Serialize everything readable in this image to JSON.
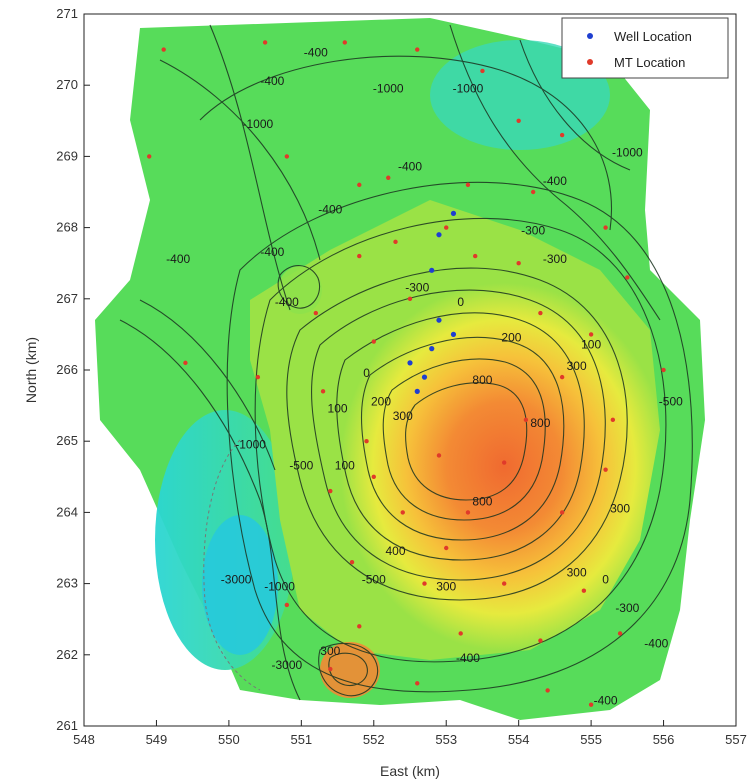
{
  "chart_data": {
    "type": "contour",
    "title": "",
    "xlabel": "East (km)",
    "ylabel": "North (km)",
    "xlim": [
      548,
      557
    ],
    "ylim": [
      261,
      271
    ],
    "x_ticks": [
      "548",
      "549",
      "550",
      "551",
      "552",
      "553",
      "554",
      "555",
      "556",
      "557"
    ],
    "y_ticks": [
      "261",
      "262",
      "263",
      "264",
      "265",
      "266",
      "267",
      "268",
      "269",
      "270",
      "271"
    ],
    "legend": {
      "position": "top-right",
      "entries": [
        {
          "label": "Well Location",
          "color": "#1f3fd0"
        },
        {
          "label": "MT Location",
          "color": "#e03a2a"
        }
      ]
    },
    "contour_labels": [
      {
        "text": "-400",
        "x": 549.3,
        "y": 267.5
      },
      {
        "text": "-400",
        "x": 550.6,
        "y": 270.0
      },
      {
        "text": "-1000",
        "x": 550.4,
        "y": 269.4
      },
      {
        "text": "-400",
        "x": 551.2,
        "y": 270.4
      },
      {
        "text": "-1000",
        "x": 552.2,
        "y": 269.9
      },
      {
        "text": "-1000",
        "x": 553.3,
        "y": 269.9
      },
      {
        "text": "-1000",
        "x": 555.5,
        "y": 269.0
      },
      {
        "text": "-400",
        "x": 552.5,
        "y": 268.8
      },
      {
        "text": "-400",
        "x": 554.5,
        "y": 268.6
      },
      {
        "text": "-400",
        "x": 551.4,
        "y": 268.2
      },
      {
        "text": "-400",
        "x": 550.6,
        "y": 267.6
      },
      {
        "text": "-400",
        "x": 550.8,
        "y": 266.9
      },
      {
        "text": "-300",
        "x": 552.6,
        "y": 267.1
      },
      {
        "text": "-300",
        "x": 554.2,
        "y": 267.9
      },
      {
        "text": "-300",
        "x": 554.5,
        "y": 267.5
      },
      {
        "text": "0",
        "x": 553.2,
        "y": 266.9
      },
      {
        "text": "200",
        "x": 553.9,
        "y": 266.4
      },
      {
        "text": "100",
        "x": 555.0,
        "y": 266.3
      },
      {
        "text": "300",
        "x": 554.8,
        "y": 266.0
      },
      {
        "text": "800",
        "x": 553.5,
        "y": 265.8
      },
      {
        "text": "0",
        "x": 551.9,
        "y": 265.9
      },
      {
        "text": "100",
        "x": 551.5,
        "y": 265.4
      },
      {
        "text": "200",
        "x": 552.1,
        "y": 265.5
      },
      {
        "text": "300",
        "x": 552.4,
        "y": 265.3
      },
      {
        "text": "800",
        "x": 554.3,
        "y": 265.2
      },
      {
        "text": "-500",
        "x": 556.1,
        "y": 265.5
      },
      {
        "text": "-1000",
        "x": 550.3,
        "y": 264.9
      },
      {
        "text": "-500",
        "x": 551.0,
        "y": 264.6
      },
      {
        "text": "100",
        "x": 551.6,
        "y": 264.6
      },
      {
        "text": "800",
        "x": 553.5,
        "y": 264.1
      },
      {
        "text": "300",
        "x": 555.4,
        "y": 264.0
      },
      {
        "text": "400",
        "x": 552.3,
        "y": 263.4
      },
      {
        "text": "-3000",
        "x": 550.1,
        "y": 263.0
      },
      {
        "text": "-1000",
        "x": 550.7,
        "y": 262.9
      },
      {
        "text": "-500",
        "x": 552.0,
        "y": 263.0
      },
      {
        "text": "300",
        "x": 553.0,
        "y": 262.9
      },
      {
        "text": "300",
        "x": 554.8,
        "y": 263.1
      },
      {
        "text": "0",
        "x": 555.2,
        "y": 263.0
      },
      {
        "text": "-300",
        "x": 555.5,
        "y": 262.6
      },
      {
        "text": "-400",
        "x": 555.9,
        "y": 262.1
      },
      {
        "text": "-400",
        "x": 553.3,
        "y": 261.9
      },
      {
        "text": "-400",
        "x": 555.2,
        "y": 261.3
      },
      {
        "text": "300",
        "x": 551.4,
        "y": 262.0
      },
      {
        "text": "-3000",
        "x": 550.8,
        "y": 261.8
      }
    ],
    "well_locations": [
      {
        "x": 553.1,
        "y": 268.2
      },
      {
        "x": 552.9,
        "y": 267.9
      },
      {
        "x": 552.8,
        "y": 267.4
      },
      {
        "x": 552.9,
        "y": 266.7
      },
      {
        "x": 553.1,
        "y": 266.5
      },
      {
        "x": 552.8,
        "y": 266.3
      },
      {
        "x": 552.5,
        "y": 266.1
      },
      {
        "x": 552.7,
        "y": 265.9
      },
      {
        "x": 552.6,
        "y": 265.7
      }
    ],
    "mt_locations": [
      {
        "x": 549.1,
        "y": 270.5
      },
      {
        "x": 550.5,
        "y": 270.6
      },
      {
        "x": 551.6,
        "y": 270.6
      },
      {
        "x": 552.6,
        "y": 270.5
      },
      {
        "x": 553.5,
        "y": 270.2
      },
      {
        "x": 554.0,
        "y": 269.5
      },
      {
        "x": 554.6,
        "y": 269.3
      },
      {
        "x": 548.9,
        "y": 269.0
      },
      {
        "x": 550.8,
        "y": 269.0
      },
      {
        "x": 551.8,
        "y": 268.6
      },
      {
        "x": 552.2,
        "y": 268.7
      },
      {
        "x": 553.3,
        "y": 268.6
      },
      {
        "x": 554.2,
        "y": 268.5
      },
      {
        "x": 555.2,
        "y": 268.0
      },
      {
        "x": 553.0,
        "y": 268.0
      },
      {
        "x": 552.3,
        "y": 267.8
      },
      {
        "x": 551.8,
        "y": 267.6
      },
      {
        "x": 553.4,
        "y": 267.6
      },
      {
        "x": 554.0,
        "y": 267.5
      },
      {
        "x": 555.5,
        "y": 267.3
      },
      {
        "x": 552.5,
        "y": 267.0
      },
      {
        "x": 551.2,
        "y": 266.8
      },
      {
        "x": 552.0,
        "y": 266.4
      },
      {
        "x": 554.3,
        "y": 266.8
      },
      {
        "x": 555.0,
        "y": 266.5
      },
      {
        "x": 549.4,
        "y": 266.1
      },
      {
        "x": 550.4,
        "y": 265.9
      },
      {
        "x": 551.3,
        "y": 265.7
      },
      {
        "x": 554.6,
        "y": 265.9
      },
      {
        "x": 556.0,
        "y": 266.0
      },
      {
        "x": 554.1,
        "y": 265.3
      },
      {
        "x": 555.3,
        "y": 265.3
      },
      {
        "x": 551.9,
        "y": 265.0
      },
      {
        "x": 552.9,
        "y": 264.8
      },
      {
        "x": 553.8,
        "y": 264.7
      },
      {
        "x": 555.2,
        "y": 264.6
      },
      {
        "x": 552.0,
        "y": 264.5
      },
      {
        "x": 551.4,
        "y": 264.3
      },
      {
        "x": 552.4,
        "y": 264.0
      },
      {
        "x": 553.3,
        "y": 264.0
      },
      {
        "x": 554.6,
        "y": 264.0
      },
      {
        "x": 553.0,
        "y": 263.5
      },
      {
        "x": 551.7,
        "y": 263.3
      },
      {
        "x": 552.7,
        "y": 263.0
      },
      {
        "x": 553.8,
        "y": 263.0
      },
      {
        "x": 554.9,
        "y": 262.9
      },
      {
        "x": 550.8,
        "y": 262.7
      },
      {
        "x": 551.8,
        "y": 262.4
      },
      {
        "x": 553.2,
        "y": 262.3
      },
      {
        "x": 554.3,
        "y": 262.2
      },
      {
        "x": 555.4,
        "y": 262.3
      },
      {
        "x": 551.4,
        "y": 261.8
      },
      {
        "x": 552.6,
        "y": 261.6
      },
      {
        "x": 554.4,
        "y": 261.5
      },
      {
        "x": 555.0,
        "y": 261.3
      }
    ],
    "colors": {
      "deep_low": "#2fd7d0",
      "low": "#3fe080",
      "mid_low": "#7fe040",
      "mid": "#d8ec40",
      "mid_high": "#f6e23a",
      "high": "#f7a23a",
      "peak": "#f06a30",
      "contour_line": "#1b3320"
    }
  }
}
